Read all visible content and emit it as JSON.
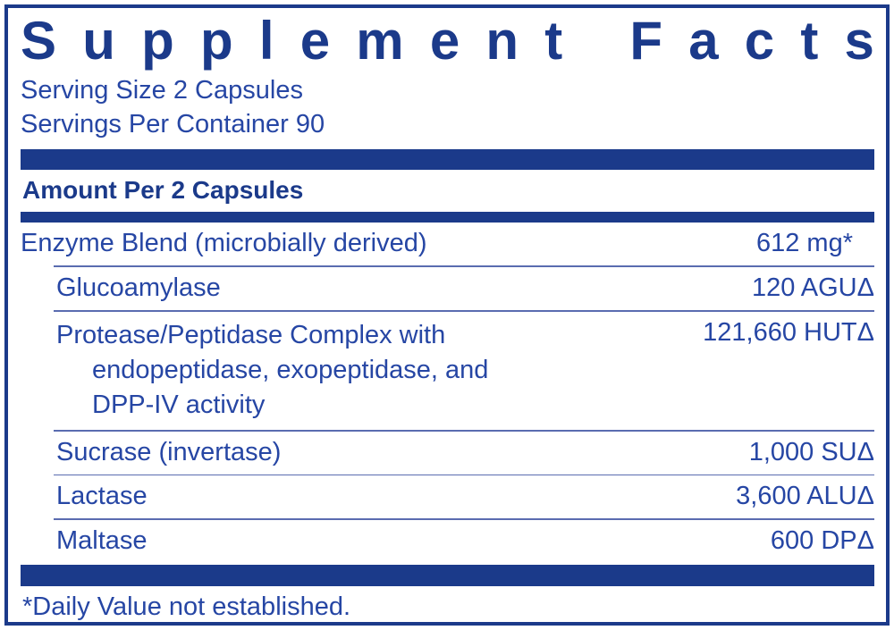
{
  "label": {
    "title": "Supplement Facts",
    "serving_size": "Serving Size 2 Capsules",
    "servings_per_container": "Servings Per Container 90",
    "amount_header": "Amount Per 2 Capsules",
    "rows": [
      {
        "name": "Enzyme Blend (microbially derived)",
        "amount": "612 mg*"
      },
      {
        "name": "Glucoamylase",
        "amount": "120 AGUΔ"
      },
      {
        "name_lines": [
          "Protease/Peptidase Complex with",
          "endopeptidase, exopeptidase, and",
          "DPP-IV activity"
        ],
        "amount": "121,660 HUTΔ"
      },
      {
        "name": "Sucrase (invertase)",
        "amount": "1,000 SUΔ"
      },
      {
        "name": "Lactase",
        "amount": "3,600 ALUΔ"
      },
      {
        "name": "Maltase",
        "amount": "600 DPΔ"
      }
    ],
    "footnote": "*Daily Value not established.",
    "colors": {
      "navy": "#1b3a8a",
      "text_blue": "#2646a4",
      "divider": "#5a6cb0"
    }
  }
}
